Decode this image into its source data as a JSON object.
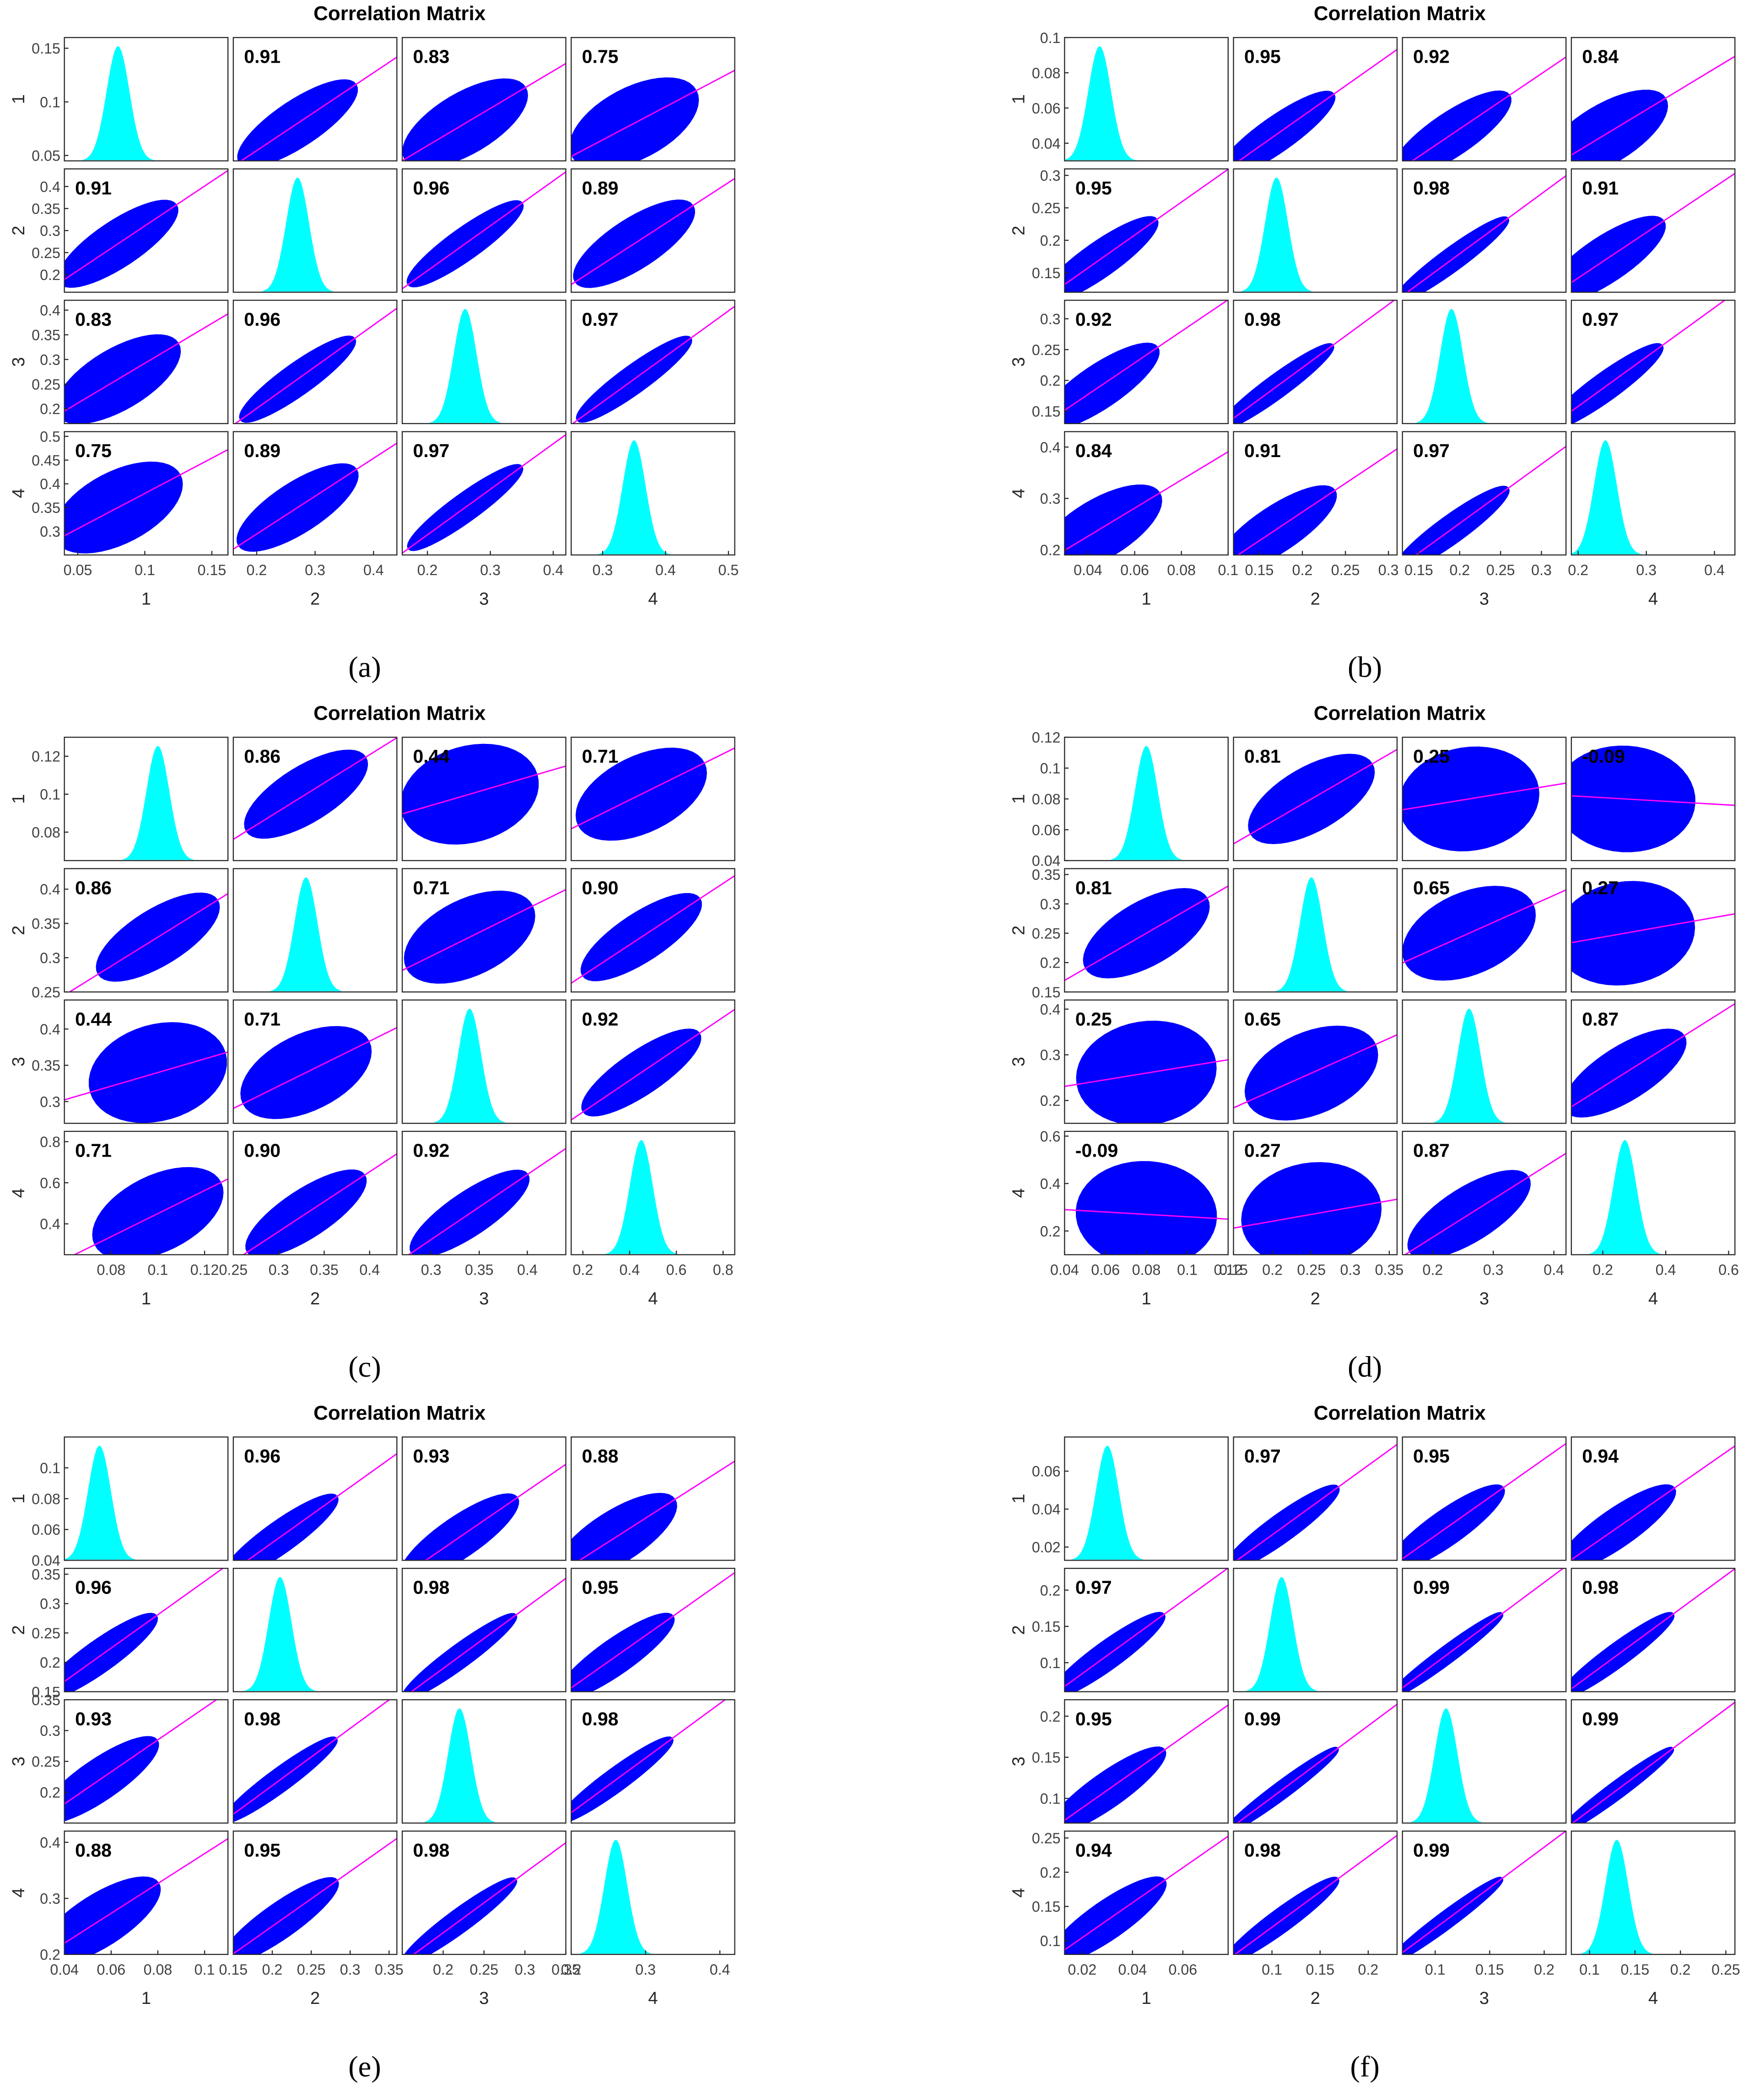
{
  "chart_data": [
    {
      "type": "scatter-matrix",
      "title": "Correlation Matrix",
      "caption": "(a)",
      "scatter_color": "#0000ff",
      "hist_color": "#00ffff",
      "fit_color": "#ff00ff",
      "variables": [
        {
          "label": "1",
          "xlim": [
            0.04,
            0.162
          ],
          "xticks": [
            0.05,
            0.1,
            0.15
          ],
          "ylim": [
            0.045,
            0.16
          ],
          "yticks": [
            0.05,
            0.1,
            0.15
          ],
          "peak": 0.08
        },
        {
          "label": "2",
          "xlim": [
            0.16,
            0.44
          ],
          "xticks": [
            0.2,
            0.3,
            0.4
          ],
          "ylim": [
            0.16,
            0.44
          ],
          "yticks": [
            0.2,
            0.25,
            0.3,
            0.35,
            0.4
          ],
          "peak": 0.27
        },
        {
          "label": "3",
          "xlim": [
            0.16,
            0.42
          ],
          "xticks": [
            0.2,
            0.3,
            0.4
          ],
          "ylim": [
            0.17,
            0.42
          ],
          "yticks": [
            0.2,
            0.25,
            0.3,
            0.35,
            0.4
          ],
          "peak": 0.26
        },
        {
          "label": "4",
          "xlim": [
            0.25,
            0.51
          ],
          "xticks": [
            0.3,
            0.4,
            0.5
          ],
          "ylim": [
            0.25,
            0.51
          ],
          "yticks": [
            0.3,
            0.35,
            0.4,
            0.45,
            0.5
          ],
          "peak": 0.35
        }
      ],
      "correlations": [
        [
          null,
          0.91,
          0.83,
          0.75
        ],
        [
          0.91,
          null,
          0.96,
          0.89
        ],
        [
          0.83,
          0.96,
          null,
          0.97
        ],
        [
          0.75,
          0.89,
          0.97,
          null
        ]
      ],
      "value_labels": [
        [
          null,
          "0.91",
          "0.83",
          "0.75"
        ],
        [
          "0.91",
          null,
          "0.96",
          "0.89"
        ],
        [
          "0.83",
          "0.96",
          null,
          "0.97"
        ],
        [
          "0.75",
          "0.89",
          "0.97",
          null
        ]
      ]
    },
    {
      "type": "scatter-matrix",
      "title": "Correlation Matrix",
      "caption": "(b)",
      "scatter_color": "#0000ff",
      "hist_color": "#00ffff",
      "fit_color": "#ff00ff",
      "variables": [
        {
          "label": "1",
          "xlim": [
            0.03,
            0.1
          ],
          "xticks": [
            0.04,
            0.06,
            0.08,
            0.1
          ],
          "ylim": [
            0.03,
            0.1
          ],
          "yticks": [
            0.04,
            0.06,
            0.08,
            0.1
          ],
          "peak": 0.045
        },
        {
          "label": "2",
          "xlim": [
            0.12,
            0.31
          ],
          "xticks": [
            0.15,
            0.2,
            0.25,
            0.3
          ],
          "ylim": [
            0.12,
            0.31
          ],
          "yticks": [
            0.15,
            0.2,
            0.25,
            0.3
          ],
          "peak": 0.17
        },
        {
          "label": "3",
          "xlim": [
            0.13,
            0.33
          ],
          "xticks": [
            0.15,
            0.2,
            0.25,
            0.3
          ],
          "ylim": [
            0.13,
            0.33
          ],
          "yticks": [
            0.15,
            0.2,
            0.25,
            0.3
          ],
          "peak": 0.19
        },
        {
          "label": "4",
          "xlim": [
            0.19,
            0.43
          ],
          "xticks": [
            0.2,
            0.3,
            0.4
          ],
          "ylim": [
            0.19,
            0.43
          ],
          "yticks": [
            0.2,
            0.3,
            0.4
          ],
          "peak": 0.24
        }
      ],
      "correlations": [
        [
          null,
          0.95,
          0.92,
          0.84
        ],
        [
          0.95,
          null,
          0.98,
          0.91
        ],
        [
          0.92,
          0.98,
          null,
          0.97
        ],
        [
          0.84,
          0.91,
          0.97,
          null
        ]
      ],
      "value_labels": [
        [
          null,
          "0.95",
          "0.92",
          "0.84"
        ],
        [
          "0.95",
          null,
          "0.98",
          "0.91"
        ],
        [
          "0.92",
          "0.98",
          null,
          "0.97"
        ],
        [
          "0.84",
          "0.91",
          "0.97",
          null
        ]
      ]
    },
    {
      "type": "scatter-matrix",
      "title": "Correlation Matrix",
      "caption": "(c)",
      "scatter_color": "#0000ff",
      "hist_color": "#00ffff",
      "fit_color": "#ff00ff",
      "variables": [
        {
          "label": "1",
          "xlim": [
            0.06,
            0.13
          ],
          "xticks": [
            0.08,
            0.1,
            0.12
          ],
          "ylim": [
            0.065,
            0.13
          ],
          "yticks": [
            0.08,
            0.1,
            0.12
          ],
          "peak": 0.1
        },
        {
          "label": "2",
          "xlim": [
            0.25,
            0.43
          ],
          "xticks": [
            0.25,
            0.3,
            0.35,
            0.4
          ],
          "ylim": [
            0.25,
            0.43
          ],
          "yticks": [
            0.25,
            0.3,
            0.35,
            0.4
          ],
          "peak": 0.33
        },
        {
          "label": "3",
          "xlim": [
            0.27,
            0.44
          ],
          "xticks": [
            0.3,
            0.35,
            0.4
          ],
          "ylim": [
            0.27,
            0.44
          ],
          "yticks": [
            0.3,
            0.35,
            0.4
          ],
          "peak": 0.34
        },
        {
          "label": "4",
          "xlim": [
            0.15,
            0.85
          ],
          "xticks": [
            0.2,
            0.4,
            0.6,
            0.8
          ],
          "ylim": [
            0.25,
            0.85
          ],
          "yticks": [
            0.4,
            0.6,
            0.8
          ],
          "peak": 0.45
        }
      ],
      "correlations": [
        [
          null,
          0.86,
          0.44,
          0.71
        ],
        [
          0.86,
          null,
          0.71,
          0.9
        ],
        [
          0.44,
          0.71,
          null,
          0.92
        ],
        [
          0.71,
          0.9,
          0.92,
          null
        ]
      ],
      "value_labels": [
        [
          null,
          "0.86",
          "0.44",
          "0.71"
        ],
        [
          "0.86",
          null,
          "0.71",
          "0.90"
        ],
        [
          "0.44",
          "0.71",
          null,
          "0.92"
        ],
        [
          "0.71",
          "0.90",
          "0.92",
          null
        ]
      ]
    },
    {
      "type": "scatter-matrix",
      "title": "Correlation Matrix",
      "caption": "(d)",
      "scatter_color": "#0000ff",
      "hist_color": "#00ffff",
      "fit_color": "#ff00ff",
      "variables": [
        {
          "label": "1",
          "xlim": [
            0.04,
            0.12
          ],
          "xticks": [
            0.04,
            0.06,
            0.08,
            0.1,
            0.12
          ],
          "ylim": [
            0.04,
            0.12
          ],
          "yticks": [
            0.04,
            0.06,
            0.08,
            0.1,
            0.12
          ],
          "peak": 0.08
        },
        {
          "label": "2",
          "xlim": [
            0.15,
            0.36
          ],
          "xticks": [
            0.15,
            0.2,
            0.25,
            0.3,
            0.35
          ],
          "ylim": [
            0.15,
            0.36
          ],
          "yticks": [
            0.15,
            0.2,
            0.25,
            0.3,
            0.35
          ],
          "peak": 0.25
        },
        {
          "label": "3",
          "xlim": [
            0.15,
            0.42
          ],
          "xticks": [
            0.2,
            0.3,
            0.4
          ],
          "ylim": [
            0.15,
            0.42
          ],
          "yticks": [
            0.2,
            0.3,
            0.4
          ],
          "peak": 0.26
        },
        {
          "label": "4",
          "xlim": [
            0.1,
            0.62
          ],
          "xticks": [
            0.2,
            0.4,
            0.6
          ],
          "ylim": [
            0.1,
            0.62
          ],
          "yticks": [
            0.2,
            0.4,
            0.6
          ],
          "peak": 0.27
        }
      ],
      "correlations": [
        [
          null,
          0.81,
          0.25,
          -0.09
        ],
        [
          0.81,
          null,
          0.65,
          0.27
        ],
        [
          0.25,
          0.65,
          null,
          0.87
        ],
        [
          -0.09,
          0.27,
          0.87,
          null
        ]
      ],
      "value_labels": [
        [
          null,
          "0.81",
          "0.25",
          "-0.09"
        ],
        [
          "0.81",
          null,
          "0.65",
          "0.27"
        ],
        [
          "0.25",
          "0.65",
          null,
          "0.87"
        ],
        [
          "-0.09",
          "0.27",
          "0.87",
          null
        ]
      ]
    },
    {
      "type": "scatter-matrix",
      "title": "Correlation Matrix",
      "caption": "(e)",
      "scatter_color": "#0000ff",
      "hist_color": "#00ffff",
      "fit_color": "#ff00ff",
      "variables": [
        {
          "label": "1",
          "xlim": [
            0.04,
            0.11
          ],
          "xticks": [
            0.04,
            0.06,
            0.08,
            0.1
          ],
          "ylim": [
            0.04,
            0.12
          ],
          "yticks": [
            0.04,
            0.06,
            0.08,
            0.1
          ],
          "peak": 0.055
        },
        {
          "label": "2",
          "xlim": [
            0.15,
            0.36
          ],
          "xticks": [
            0.15,
            0.2,
            0.25,
            0.3,
            0.35
          ],
          "ylim": [
            0.15,
            0.36
          ],
          "yticks": [
            0.15,
            0.2,
            0.25,
            0.3,
            0.35
          ],
          "peak": 0.21
        },
        {
          "label": "3",
          "xlim": [
            0.15,
            0.35
          ],
          "xticks": [
            0.2,
            0.25,
            0.3,
            0.35
          ],
          "ylim": [
            0.15,
            0.35
          ],
          "yticks": [
            0.2,
            0.25,
            0.3,
            0.35
          ],
          "peak": 0.22
        },
        {
          "label": "4",
          "xlim": [
            0.2,
            0.42
          ],
          "xticks": [
            0.2,
            0.3,
            0.4
          ],
          "ylim": [
            0.2,
            0.42
          ],
          "yticks": [
            0.2,
            0.3,
            0.4
          ],
          "peak": 0.26
        }
      ],
      "correlations": [
        [
          null,
          0.96,
          0.93,
          0.88
        ],
        [
          0.96,
          null,
          0.98,
          0.95
        ],
        [
          0.93,
          0.98,
          null,
          0.98
        ],
        [
          0.88,
          0.95,
          0.98,
          null
        ]
      ],
      "value_labels": [
        [
          null,
          "0.96",
          "0.93",
          "0.88"
        ],
        [
          "0.96",
          null,
          "0.98",
          "0.95"
        ],
        [
          "0.93",
          "0.98",
          null,
          "0.98"
        ],
        [
          "0.88",
          "0.95",
          "0.98",
          null
        ]
      ]
    },
    {
      "type": "scatter-matrix",
      "title": "Correlation Matrix",
      "caption": "(f)",
      "scatter_color": "#0000ff",
      "hist_color": "#00ffff",
      "fit_color": "#ff00ff",
      "variables": [
        {
          "label": "1",
          "xlim": [
            0.013,
            0.078
          ],
          "xticks": [
            0.02,
            0.04,
            0.06
          ],
          "ylim": [
            0.013,
            0.078
          ],
          "yticks": [
            0.02,
            0.04,
            0.06
          ],
          "peak": 0.03
        },
        {
          "label": "2",
          "xlim": [
            0.06,
            0.23
          ],
          "xticks": [
            0.1,
            0.15,
            0.2
          ],
          "ylim": [
            0.06,
            0.23
          ],
          "yticks": [
            0.1,
            0.15,
            0.2
          ],
          "peak": 0.11
        },
        {
          "label": "3",
          "xlim": [
            0.07,
            0.22
          ],
          "xticks": [
            0.1,
            0.15,
            0.2
          ],
          "ylim": [
            0.07,
            0.22
          ],
          "yticks": [
            0.1,
            0.15,
            0.2
          ],
          "peak": 0.11
        },
        {
          "label": "4",
          "xlim": [
            0.08,
            0.26
          ],
          "xticks": [
            0.1,
            0.15,
            0.2,
            0.25
          ],
          "ylim": [
            0.08,
            0.26
          ],
          "yticks": [
            0.1,
            0.15,
            0.2,
            0.25
          ],
          "peak": 0.13
        }
      ],
      "correlations": [
        [
          null,
          0.97,
          0.95,
          0.94
        ],
        [
          0.97,
          null,
          0.99,
          0.98
        ],
        [
          0.95,
          0.99,
          null,
          0.99
        ],
        [
          0.94,
          0.98,
          0.99,
          null
        ]
      ],
      "value_labels": [
        [
          null,
          "0.97",
          "0.95",
          "0.94"
        ],
        [
          "0.97",
          null,
          "0.99",
          "0.98"
        ],
        [
          "0.95",
          "0.99",
          null,
          "0.99"
        ],
        [
          "0.94",
          "0.98",
          "0.99",
          null
        ]
      ]
    }
  ]
}
